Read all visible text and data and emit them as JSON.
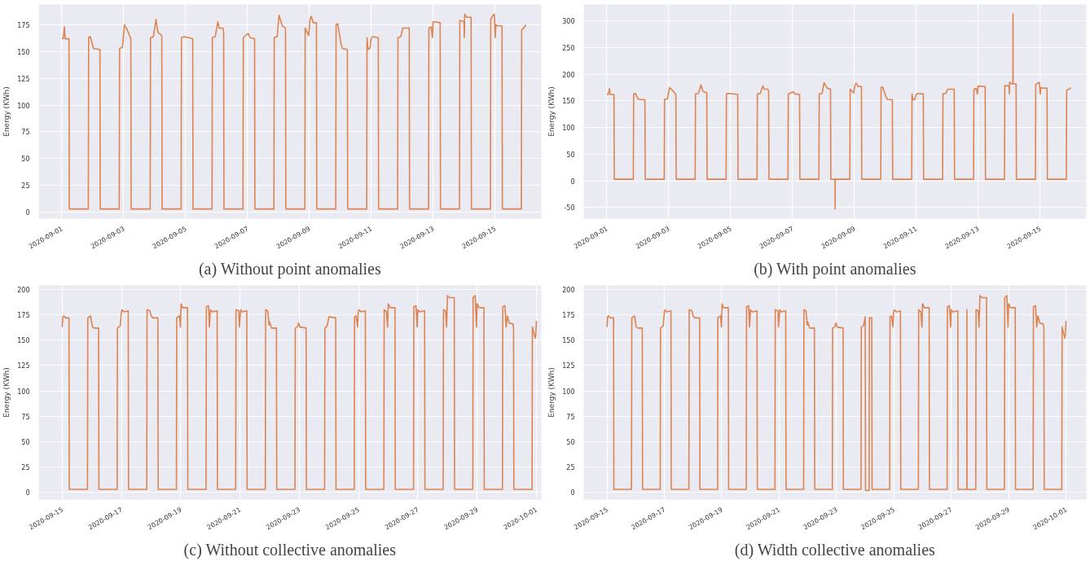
{
  "chart_data": [
    {
      "type": "line",
      "title": "(a) Without point anomalies",
      "ylabel": "Energy (KWh)",
      "grid": true,
      "xlim": [
        "2020-08-31T06:00",
        "2020-09-16T12:00"
      ],
      "xticks": [
        "2020-09-01",
        "2020-09-03",
        "2020-09-05",
        "2020-09-07",
        "2020-09-09",
        "2020-09-11",
        "2020-09-13",
        "2020-09-15"
      ],
      "ylim": [
        -6,
        194
      ],
      "yticks": [
        0,
        25,
        50,
        75,
        100,
        125,
        150,
        175
      ],
      "series": [
        {
          "color": "#dd8452",
          "x": [
            "2020-09-01T00:00",
            "2020-09-01T01:00",
            "2020-09-01T02:00",
            "2020-09-01T02:30",
            "2020-09-01T05:30",
            "2020-09-01T05:45",
            "2020-09-01T20:30",
            "2020-09-01T20:45",
            "2020-09-01T22:00",
            "2020-09-02T00:30",
            "2020-09-02T05:30",
            "2020-09-02T05:45",
            "2020-09-02T20:30",
            "2020-09-02T20:45",
            "2020-09-02T23:00",
            "2020-09-03T00:30",
            "2020-09-03T02:00",
            "2020-09-03T03:30",
            "2020-09-03T05:30",
            "2020-09-03T05:45",
            "2020-09-03T20:30",
            "2020-09-03T20:45",
            "2020-09-03T23:00",
            "2020-09-04T01:00",
            "2020-09-04T02:30",
            "2020-09-04T05:30",
            "2020-09-04T05:45",
            "2020-09-04T20:30",
            "2020-09-04T20:45",
            "2020-09-04T23:00",
            "2020-09-05T05:30",
            "2020-09-05T05:45",
            "2020-09-05T20:30",
            "2020-09-05T20:45",
            "2020-09-05T23:00",
            "2020-09-06T01:00",
            "2020-09-06T02:00",
            "2020-09-06T05:00",
            "2020-09-06T05:30",
            "2020-09-06T05:45",
            "2020-09-06T20:30",
            "2020-09-06T20:45",
            "2020-09-07T00:30",
            "2020-09-07T02:00",
            "2020-09-07T05:30",
            "2020-09-07T05:45",
            "2020-09-07T20:30",
            "2020-09-07T20:45",
            "2020-09-07T23:00",
            "2020-09-08T00:30",
            "2020-09-08T02:00",
            "2020-09-08T03:00",
            "2020-09-08T05:30",
            "2020-09-08T05:45",
            "2020-09-08T20:30",
            "2020-09-08T20:45",
            "2020-09-08T23:30",
            "2020-09-09T00:30",
            "2020-09-09T01:30",
            "2020-09-09T03:00",
            "2020-09-09T05:30",
            "2020-09-09T05:45",
            "2020-09-09T20:30",
            "2020-09-09T20:45",
            "2020-09-09T22:00",
            "2020-09-10T00:30",
            "2020-09-10T01:30",
            "2020-09-10T05:30",
            "2020-09-10T05:45",
            "2020-09-10T20:30",
            "2020-09-10T20:45",
            "2020-09-10T21:30",
            "2020-09-10T23:00",
            "2020-09-11T00:00",
            "2020-09-11T01:00",
            "2020-09-11T05:30",
            "2020-09-11T05:45",
            "2020-09-11T20:30",
            "2020-09-11T20:45",
            "2020-09-11T23:00",
            "2020-09-12T00:30",
            "2020-09-12T05:30",
            "2020-09-12T05:45",
            "2020-09-12T20:30",
            "2020-09-12T20:45",
            "2020-09-12T22:30",
            "2020-09-12T23:30",
            "2020-09-13T00:00",
            "2020-09-13T05:30",
            "2020-09-13T05:45",
            "2020-09-13T20:30",
            "2020-09-13T20:45",
            "2020-09-14T00:00",
            "2020-09-14T00:15",
            "2020-09-14T00:30",
            "2020-09-14T02:00",
            "2020-09-14T05:30",
            "2020-09-14T05:45",
            "2020-09-14T20:30",
            "2020-09-14T20:45",
            "2020-09-14T22:00",
            "2020-09-14T23:30",
            "2020-09-15T00:15",
            "2020-09-15T00:45",
            "2020-09-15T02:00",
            "2020-09-15T05:30",
            "2020-09-15T05:45",
            "2020-09-15T20:30",
            "2020-09-15T20:45",
            "2020-09-15T23:00",
            "2020-09-16T00:00"
          ],
          "values": [
            163,
            162,
            173,
            162,
            162,
            3,
            3,
            163,
            164,
            153,
            152,
            3,
            3,
            153,
            154,
            175,
            172,
            168,
            162,
            3,
            3,
            163,
            164,
            180,
            168,
            165,
            3,
            3,
            163,
            164,
            162,
            3,
            3,
            163,
            164,
            178,
            172,
            172,
            168,
            3,
            3,
            163,
            167,
            163,
            162,
            3,
            3,
            163,
            164,
            184,
            178,
            174,
            172,
            3,
            3,
            172,
            165,
            180,
            183,
            177,
            177,
            3,
            3,
            175,
            176,
            158,
            153,
            152,
            3,
            3,
            163,
            152,
            153,
            162,
            164,
            163,
            3,
            3,
            163,
            164,
            172,
            172,
            3,
            3,
            172,
            173,
            163,
            178,
            177,
            3,
            3,
            179,
            178,
            163,
            185,
            182,
            182,
            3,
            3,
            180,
            183,
            185,
            163,
            175,
            174,
            174,
            3,
            3,
            170,
            173,
            175
          ]
        }
      ]
    },
    {
      "type": "line",
      "title": "(b) With point anomalies",
      "ylabel": "Energy (KWh)",
      "grid": true,
      "xlim": [
        "2020-08-31T06:00",
        "2020-09-16T12:00"
      ],
      "xticks": [
        "2020-09-01",
        "2020-09-03",
        "2020-09-05",
        "2020-09-07",
        "2020-09-09",
        "2020-09-11",
        "2020-09-13",
        "2020-09-15"
      ],
      "ylim": [
        -71,
        331
      ],
      "yticks": [
        -50,
        0,
        50,
        100,
        150,
        200,
        250,
        300
      ],
      "series": [
        {
          "color": "#dd8452",
          "x": [
            "2020-09-01T00:00",
            "2020-09-01T01:00",
            "2020-09-01T02:00",
            "2020-09-01T02:30",
            "2020-09-01T05:30",
            "2020-09-01T05:45",
            "2020-09-01T20:30",
            "2020-09-01T20:45",
            "2020-09-01T22:00",
            "2020-09-02T00:30",
            "2020-09-02T05:30",
            "2020-09-02T05:45",
            "2020-09-02T20:30",
            "2020-09-02T20:45",
            "2020-09-02T23:00",
            "2020-09-03T00:30",
            "2020-09-03T02:00",
            "2020-09-03T03:30",
            "2020-09-03T05:30",
            "2020-09-03T05:45",
            "2020-09-03T20:30",
            "2020-09-03T20:45",
            "2020-09-03T23:00",
            "2020-09-04T01:00",
            "2020-09-04T02:30",
            "2020-09-04T05:30",
            "2020-09-04T05:45",
            "2020-09-04T20:30",
            "2020-09-04T20:45",
            "2020-09-04T23:00",
            "2020-09-05T05:30",
            "2020-09-05T05:45",
            "2020-09-05T20:30",
            "2020-09-05T20:45",
            "2020-09-05T23:00",
            "2020-09-06T01:00",
            "2020-09-06T02:00",
            "2020-09-06T05:00",
            "2020-09-06T05:30",
            "2020-09-06T05:45",
            "2020-09-06T20:30",
            "2020-09-06T20:45",
            "2020-09-07T00:30",
            "2020-09-07T02:00",
            "2020-09-07T05:30",
            "2020-09-07T05:45",
            "2020-09-07T20:30",
            "2020-09-07T20:45",
            "2020-09-07T23:00",
            "2020-09-08T00:30",
            "2020-09-08T02:00",
            "2020-09-08T03:00",
            "2020-09-08T05:30",
            "2020-09-08T05:45",
            "2020-09-08T09:00",
            "2020-09-08T09:05",
            "2020-09-08T09:10",
            "2020-09-08T20:30",
            "2020-09-08T20:45",
            "2020-09-08T23:30",
            "2020-09-09T00:30",
            "2020-09-09T01:30",
            "2020-09-09T03:00",
            "2020-09-09T05:30",
            "2020-09-09T05:45",
            "2020-09-09T20:30",
            "2020-09-09T20:45",
            "2020-09-09T22:00",
            "2020-09-10T00:30",
            "2020-09-10T01:30",
            "2020-09-10T05:30",
            "2020-09-10T05:45",
            "2020-09-10T20:30",
            "2020-09-10T20:45",
            "2020-09-10T21:30",
            "2020-09-10T23:00",
            "2020-09-11T00:00",
            "2020-09-11T01:00",
            "2020-09-11T05:30",
            "2020-09-11T05:45",
            "2020-09-11T20:30",
            "2020-09-11T20:45",
            "2020-09-11T23:00",
            "2020-09-12T00:30",
            "2020-09-12T05:30",
            "2020-09-12T05:45",
            "2020-09-12T20:30",
            "2020-09-12T20:45",
            "2020-09-12T22:30",
            "2020-09-12T23:30",
            "2020-09-13T00:00",
            "2020-09-13T05:30",
            "2020-09-13T05:45",
            "2020-09-13T20:30",
            "2020-09-13T20:45",
            "2020-09-14T00:00",
            "2020-09-14T00:15",
            "2020-09-14T00:30",
            "2020-09-14T02:00",
            "2020-09-14T03:00",
            "2020-09-14T03:05",
            "2020-09-14T03:10",
            "2020-09-14T05:30",
            "2020-09-14T05:45",
            "2020-09-14T20:30",
            "2020-09-14T20:45",
            "2020-09-14T22:00",
            "2020-09-14T23:30",
            "2020-09-15T00:15",
            "2020-09-15T00:45",
            "2020-09-15T02:00",
            "2020-09-15T05:30",
            "2020-09-15T05:45",
            "2020-09-15T20:30",
            "2020-09-15T20:45",
            "2020-09-15T23:00",
            "2020-09-16T00:00"
          ],
          "values": [
            163,
            162,
            173,
            162,
            162,
            3,
            3,
            163,
            164,
            153,
            152,
            3,
            3,
            153,
            154,
            175,
            172,
            168,
            162,
            3,
            3,
            163,
            164,
            180,
            168,
            165,
            3,
            3,
            163,
            164,
            162,
            3,
            3,
            163,
            164,
            178,
            172,
            172,
            168,
            3,
            3,
            163,
            167,
            163,
            162,
            3,
            3,
            163,
            164,
            184,
            178,
            174,
            172,
            3,
            3,
            -53,
            3,
            3,
            172,
            165,
            180,
            183,
            177,
            177,
            3,
            3,
            175,
            176,
            158,
            153,
            152,
            3,
            3,
            163,
            152,
            153,
            162,
            164,
            163,
            3,
            3,
            163,
            164,
            172,
            172,
            3,
            3,
            172,
            173,
            163,
            178,
            177,
            3,
            3,
            179,
            178,
            163,
            185,
            182,
            182,
            313,
            182,
            182,
            3,
            3,
            180,
            183,
            185,
            163,
            175,
            174,
            174,
            3,
            3,
            170,
            173,
            175
          ]
        }
      ]
    },
    {
      "type": "line",
      "title": "(c) Without collective anomalies",
      "ylabel": "Energy (KWh)",
      "grid": true,
      "xlim": [
        "2020-09-14T05:00",
        "2020-10-01T04:00"
      ],
      "xticks": [
        "2020-09-15",
        "2020-09-17",
        "2020-09-19",
        "2020-09-21",
        "2020-09-23",
        "2020-09-25",
        "2020-09-27",
        "2020-09-29",
        "2020-10-01"
      ],
      "ylim": [
        -7,
        204
      ],
      "yticks": [
        0,
        25,
        50,
        75,
        100,
        125,
        150,
        175,
        200
      ],
      "series": [
        {
          "color": "#dd8452",
          "x": [
            "2020-09-15T00:00",
            "2020-09-15T00:30",
            "2020-09-15T01:30",
            "2020-09-15T02:30",
            "2020-09-15T05:30",
            "2020-09-15T05:45",
            "2020-09-15T20:30",
            "2020-09-15T20:45",
            "2020-09-15T23:00",
            "2020-09-16T00:30",
            "2020-09-16T02:00",
            "2020-09-16T05:30",
            "2020-09-16T05:45",
            "2020-09-16T20:30",
            "2020-09-16T20:45",
            "2020-09-16T23:00",
            "2020-09-17T00:00",
            "2020-09-17T00:30",
            "2020-09-17T02:00",
            "2020-09-17T05:30",
            "2020-09-17T05:45",
            "2020-09-17T20:30",
            "2020-09-17T20:45",
            "2020-09-17T23:00",
            "2020-09-18T00:00",
            "2020-09-18T01:30",
            "2020-09-18T05:30",
            "2020-09-18T05:45",
            "2020-09-18T20:30",
            "2020-09-18T20:45",
            "2020-09-18T23:00",
            "2020-09-18T23:45",
            "2020-09-19T00:15",
            "2020-09-19T01:30",
            "2020-09-19T05:30",
            "2020-09-19T05:45",
            "2020-09-19T20:30",
            "2020-09-19T20:45",
            "2020-09-19T22:30",
            "2020-09-19T23:15",
            "2020-09-20T00:00",
            "2020-09-20T01:30",
            "2020-09-20T05:30",
            "2020-09-20T05:45",
            "2020-09-20T20:30",
            "2020-09-20T20:45",
            "2020-09-20T23:00",
            "2020-09-20T23:30",
            "2020-09-21T00:30",
            "2020-09-21T01:30",
            "2020-09-21T05:30",
            "2020-09-21T05:45",
            "2020-09-21T20:30",
            "2020-09-21T20:45",
            "2020-09-21T22:30",
            "2020-09-21T23:30",
            "2020-09-22T00:00",
            "2020-09-22T01:30",
            "2020-09-22T05:30",
            "2020-09-22T05:45",
            "2020-09-22T20:30",
            "2020-09-22T20:45",
            "2020-09-22T22:30",
            "2020-09-22T23:30",
            "2020-09-23T00:30",
            "2020-09-23T05:30",
            "2020-09-23T05:45",
            "2020-09-23T20:30",
            "2020-09-23T20:45",
            "2020-09-23T22:30",
            "2020-09-24T00:00",
            "2020-09-24T05:30",
            "2020-09-24T05:45",
            "2020-09-24T20:30",
            "2020-09-24T20:45",
            "2020-09-24T22:00",
            "2020-09-24T23:15",
            "2020-09-24T23:45",
            "2020-09-25T00:30",
            "2020-09-25T02:00",
            "2020-09-25T05:30",
            "2020-09-25T05:45",
            "2020-09-25T20:30",
            "2020-09-25T20:45",
            "2020-09-25T22:30",
            "2020-09-25T23:30",
            "2020-09-26T00:00",
            "2020-09-26T01:30",
            "2020-09-26T05:30",
            "2020-09-26T05:45",
            "2020-09-26T20:30",
            "2020-09-26T20:45",
            "2020-09-26T22:30",
            "2020-09-26T23:30",
            "2020-09-27T00:00",
            "2020-09-27T01:30",
            "2020-09-27T05:30",
            "2020-09-27T05:45",
            "2020-09-27T20:30",
            "2020-09-27T20:45",
            "2020-09-27T22:30",
            "2020-09-27T23:15",
            "2020-09-28T00:00",
            "2020-09-28T01:30",
            "2020-09-28T05:30",
            "2020-09-28T05:45",
            "2020-09-28T20:30",
            "2020-09-28T20:45",
            "2020-09-28T22:30",
            "2020-09-28T23:30",
            "2020-09-29T00:00",
            "2020-09-29T01:30",
            "2020-09-29T05:30",
            "2020-09-29T05:45",
            "2020-09-29T20:30",
            "2020-09-29T20:45",
            "2020-09-29T22:30",
            "2020-09-29T23:30",
            "2020-09-30T00:30",
            "2020-09-30T02:00",
            "2020-09-30T05:00",
            "2020-09-30T05:30",
            "2020-09-30T05:45",
            "2020-09-30T20:30",
            "2020-09-30T20:45",
            "2020-09-30T23:00",
            "2020-09-30T23:30",
            "2020-10-01T00:00"
          ],
          "values": [
            163,
            173,
            174,
            172,
            172,
            3,
            3,
            172,
            174,
            163,
            162,
            162,
            3,
            3,
            162,
            164,
            178,
            180,
            178,
            179,
            3,
            3,
            180,
            179,
            174,
            172,
            172,
            3,
            3,
            172,
            174,
            163,
            186,
            182,
            182,
            3,
            3,
            183,
            184,
            163,
            180,
            178,
            179,
            3,
            3,
            180,
            179,
            163,
            180,
            178,
            179,
            3,
            3,
            180,
            179,
            165,
            168,
            162,
            162,
            3,
            3,
            162,
            163,
            167,
            163,
            162,
            3,
            3,
            162,
            164,
            173,
            172,
            3,
            3,
            173,
            174,
            163,
            178,
            180,
            178,
            179,
            3,
            3,
            180,
            178,
            163,
            186,
            182,
            182,
            3,
            3,
            183,
            184,
            163,
            180,
            178,
            179,
            3,
            3,
            180,
            179,
            163,
            194,
            192,
            192,
            3,
            3,
            192,
            194,
            163,
            186,
            182,
            182,
            3,
            3,
            183,
            184,
            163,
            174,
            167,
            166,
            162,
            3,
            3,
            163,
            152,
            155,
            169
          ]
        }
      ]
    },
    {
      "type": "line",
      "title": "(d) Width collective anomalies",
      "ylabel": "Energy (KWh)",
      "grid": true,
      "xlim": [
        "2020-09-14T04:30",
        "2020-10-01T17:00"
      ],
      "xticks": [
        "2020-09-15",
        "2020-09-17",
        "2020-09-19",
        "2020-09-21",
        "2020-09-23",
        "2020-09-25",
        "2020-09-27",
        "2020-09-29",
        "2020-10-01"
      ],
      "ylim": [
        -7,
        204
      ],
      "yticks": [
        0,
        25,
        50,
        75,
        100,
        125,
        150,
        175,
        200
      ],
      "series": [
        {
          "color": "#dd8452",
          "x": [
            "2020-09-15T00:00",
            "2020-09-15T00:30",
            "2020-09-15T01:30",
            "2020-09-15T02:30",
            "2020-09-15T05:30",
            "2020-09-15T05:45",
            "2020-09-15T20:30",
            "2020-09-15T20:45",
            "2020-09-15T23:00",
            "2020-09-16T00:30",
            "2020-09-16T02:00",
            "2020-09-16T05:30",
            "2020-09-16T05:45",
            "2020-09-16T20:30",
            "2020-09-16T20:45",
            "2020-09-16T23:00",
            "2020-09-17T00:00",
            "2020-09-17T00:30",
            "2020-09-17T02:00",
            "2020-09-17T05:30",
            "2020-09-17T05:45",
            "2020-09-17T20:30",
            "2020-09-17T20:45",
            "2020-09-17T23:00",
            "2020-09-18T00:00",
            "2020-09-18T01:30",
            "2020-09-18T05:30",
            "2020-09-18T05:45",
            "2020-09-18T20:30",
            "2020-09-18T20:45",
            "2020-09-18T23:00",
            "2020-09-18T23:45",
            "2020-09-19T00:15",
            "2020-09-19T01:30",
            "2020-09-19T05:30",
            "2020-09-19T05:45",
            "2020-09-19T20:30",
            "2020-09-19T20:45",
            "2020-09-19T22:30",
            "2020-09-19T23:15",
            "2020-09-20T00:00",
            "2020-09-20T01:30",
            "2020-09-20T05:30",
            "2020-09-20T05:45",
            "2020-09-20T20:30",
            "2020-09-20T20:45",
            "2020-09-20T23:00",
            "2020-09-20T23:30",
            "2020-09-21T00:30",
            "2020-09-21T01:30",
            "2020-09-21T05:30",
            "2020-09-21T05:45",
            "2020-09-21T20:30",
            "2020-09-21T20:45",
            "2020-09-21T22:30",
            "2020-09-21T23:30",
            "2020-09-22T00:00",
            "2020-09-22T01:30",
            "2020-09-22T05:30",
            "2020-09-22T05:45",
            "2020-09-22T20:30",
            "2020-09-22T20:45",
            "2020-09-22T22:30",
            "2020-09-22T23:30",
            "2020-09-23T00:30",
            "2020-09-23T05:30",
            "2020-09-23T05:45",
            "2020-09-23T20:30",
            "2020-09-23T20:45",
            "2020-09-23T22:30",
            "2020-09-24T00:00",
            "2020-09-24T00:15",
            "2020-09-24T03:15",
            "2020-09-24T03:30",
            "2020-09-24T05:30",
            "2020-09-24T05:45",
            "2020-09-24T20:30",
            "2020-09-24T20:45",
            "2020-09-24T22:00",
            "2020-09-24T23:15",
            "2020-09-24T23:45",
            "2020-09-25T00:30",
            "2020-09-25T02:00",
            "2020-09-25T05:30",
            "2020-09-25T05:45",
            "2020-09-25T20:30",
            "2020-09-25T20:45",
            "2020-09-25T22:30",
            "2020-09-25T23:30",
            "2020-09-26T00:00",
            "2020-09-26T01:30",
            "2020-09-26T05:30",
            "2020-09-26T05:45",
            "2020-09-26T20:30",
            "2020-09-26T20:45",
            "2020-09-26T22:30",
            "2020-09-26T23:30",
            "2020-09-27T00:00",
            "2020-09-27T01:30",
            "2020-09-27T05:30",
            "2020-09-27T05:45",
            "2020-09-27T13:00",
            "2020-09-27T13:05",
            "2020-09-27T13:10",
            "2020-09-27T20:30",
            "2020-09-27T20:45",
            "2020-09-27T22:30",
            "2020-09-27T23:15",
            "2020-09-28T00:00",
            "2020-09-28T01:30",
            "2020-09-28T05:30",
            "2020-09-28T05:45",
            "2020-09-28T20:30",
            "2020-09-28T20:45",
            "2020-09-28T22:30",
            "2020-09-28T23:30",
            "2020-09-29T00:00",
            "2020-09-29T01:30",
            "2020-09-29T05:30",
            "2020-09-29T05:45",
            "2020-09-29T20:30",
            "2020-09-29T20:45",
            "2020-09-29T22:30",
            "2020-09-29T23:30",
            "2020-09-30T00:30",
            "2020-09-30T02:00",
            "2020-09-30T05:00",
            "2020-09-30T05:30",
            "2020-09-30T05:45",
            "2020-09-30T20:30",
            "2020-09-30T20:45",
            "2020-09-30T23:00",
            "2020-09-30T23:30",
            "2020-10-01T00:00"
          ],
          "values": [
            163,
            173,
            174,
            172,
            172,
            3,
            3,
            172,
            174,
            163,
            162,
            162,
            3,
            3,
            162,
            164,
            178,
            180,
            178,
            179,
            3,
            3,
            180,
            179,
            174,
            172,
            172,
            3,
            3,
            172,
            174,
            163,
            186,
            182,
            182,
            3,
            3,
            183,
            184,
            163,
            180,
            178,
            179,
            3,
            3,
            180,
            179,
            163,
            180,
            178,
            179,
            3,
            3,
            180,
            179,
            165,
            168,
            162,
            162,
            3,
            3,
            162,
            163,
            167,
            163,
            162,
            3,
            3,
            163,
            164,
            173,
            2,
            2,
            172,
            172,
            3,
            3,
            173,
            174,
            163,
            178,
            180,
            178,
            179,
            3,
            3,
            180,
            178,
            163,
            186,
            182,
            182,
            3,
            3,
            183,
            184,
            163,
            180,
            178,
            179,
            3,
            3,
            180,
            3,
            3,
            180,
            179,
            163,
            194,
            192,
            192,
            3,
            3,
            192,
            194,
            163,
            186,
            182,
            182,
            3,
            3,
            183,
            184,
            163,
            174,
            167,
            166,
            162,
            3,
            3,
            163,
            152,
            155,
            169
          ]
        }
      ]
    }
  ]
}
